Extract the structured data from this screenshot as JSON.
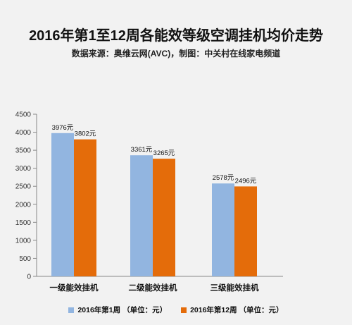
{
  "title": "2016年第1至12周各能效等级空调挂机均价走势",
  "subtitle": "数据来源：奥维云网(AVC)，制图：中关村在线家电频道",
  "colors": {
    "series1": "#92b5e0",
    "series2": "#e46c0a",
    "axis": "#888888",
    "background": "#f2f2f2"
  },
  "chart_data": {
    "type": "bar",
    "title": "2016年第1至12周各能效等级空调挂机均价走势",
    "subtitle": "数据来源：奥维云网(AVC)，制图：中关村在线家电频道",
    "categories": [
      "一级能效挂机",
      "二级能效挂机",
      "三级能效挂机"
    ],
    "series": [
      {
        "name": "2016年第1周 （单位：元）",
        "values": [
          3976,
          3361,
          2578
        ],
        "labels": [
          "3976元",
          "3361元",
          "2578元"
        ]
      },
      {
        "name": "2016年第12周 （单位：元）",
        "values": [
          3802,
          3265,
          2496
        ],
        "labels": [
          "3802元",
          "3265元",
          "2496元"
        ]
      }
    ],
    "yticks": [
      "0",
      "500",
      "1000",
      "1500",
      "2000",
      "2500",
      "3000",
      "3500",
      "4000",
      "4500"
    ],
    "ylim": [
      0,
      4500
    ],
    "xlabel": "",
    "ylabel": "",
    "grid": false,
    "legend_position": "bottom"
  }
}
